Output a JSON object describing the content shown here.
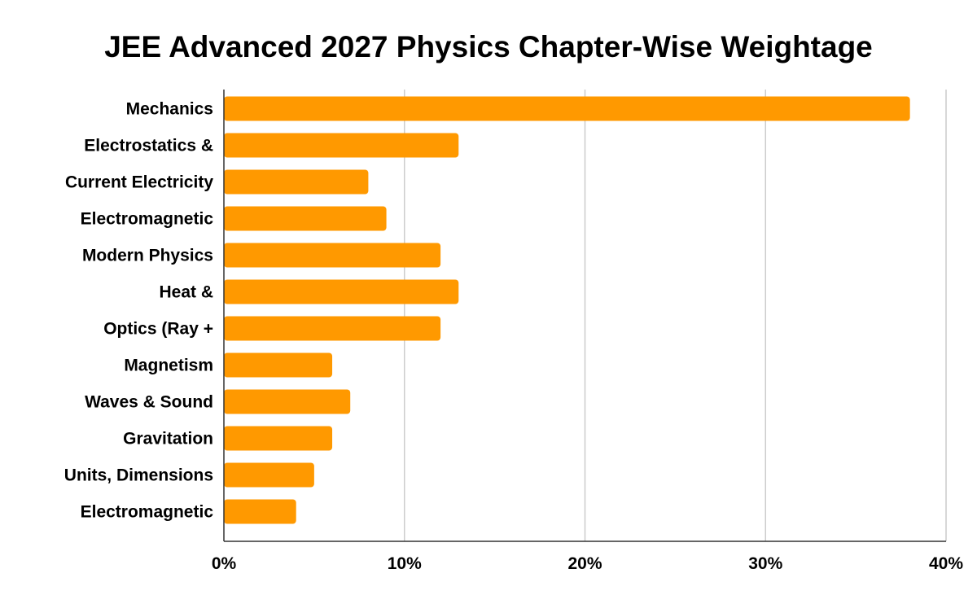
{
  "chart_data": {
    "type": "bar",
    "orientation": "horizontal",
    "title": "JEE Advanced 2027 Physics Chapter-Wise Weightage",
    "xlabel": "",
    "ylabel": "",
    "categories": [
      "Mechanics",
      "Electrostatics &",
      "Current Electricity",
      "Electromagnetic",
      "Modern Physics",
      "Heat &",
      "Optics (Ray +",
      "Magnetism",
      "Waves & Sound",
      "Gravitation",
      "Units, Dimensions",
      "Electromagnetic"
    ],
    "values": [
      38,
      13,
      8,
      9,
      12,
      13,
      12,
      6,
      7,
      6,
      5,
      4
    ],
    "xlim": [
      0,
      40
    ],
    "xticks": [
      0,
      10,
      20,
      30,
      40
    ],
    "xtick_labels": [
      "0%",
      "10%",
      "20%",
      "30%",
      "40%"
    ],
    "grid": "vertical",
    "legend": "none",
    "bar_color": "#ff9900",
    "grid_color": "#cccccc",
    "axis_color": "#333333"
  }
}
